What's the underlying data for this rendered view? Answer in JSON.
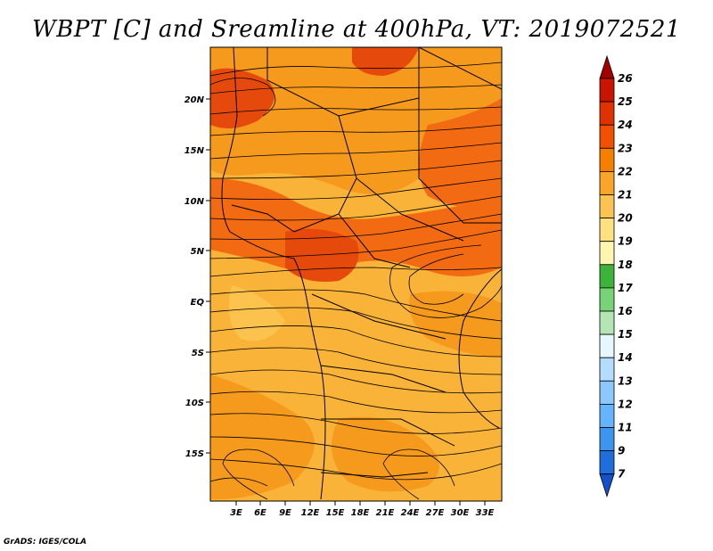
{
  "title": "WBPT [C] and Sreamline at 400hPa, VT: 2019072521",
  "credit": "GrADS: IGES/COLA",
  "map": {
    "lat_labels": [
      "20N",
      "15N",
      "10N",
      "5N",
      "EQ",
      "5S",
      "10S",
      "15S"
    ],
    "lon_labels": [
      "3E",
      "6E",
      "9E",
      "12E",
      "15E",
      "18E",
      "21E",
      "24E",
      "27E",
      "30E",
      "33E"
    ]
  },
  "colorbar": {
    "labels": [
      "26",
      "25",
      "24",
      "23",
      "22",
      "21",
      "20",
      "19",
      "18",
      "17",
      "16",
      "15",
      "14",
      "13",
      "12",
      "11",
      "9",
      "7"
    ],
    "colors": [
      "#a50000",
      "#c81400",
      "#e03200",
      "#f05000",
      "#f77f00",
      "#faa42a",
      "#fcc350",
      "#fde080",
      "#fff5b0",
      "#3cb43c",
      "#78d278",
      "#b4e6b4",
      "#e6f7ff",
      "#b4dcff",
      "#8cc8ff",
      "#64b4ff",
      "#3c96f0",
      "#1e6edc",
      "#1450c8"
    ]
  },
  "colors": {
    "warm_base": "#f9b338",
    "warm_mid": "#f69a1e",
    "warm_high": "#f26a12",
    "warm_peak": "#e54a0c",
    "cool_patch": "#fcc24e"
  }
}
